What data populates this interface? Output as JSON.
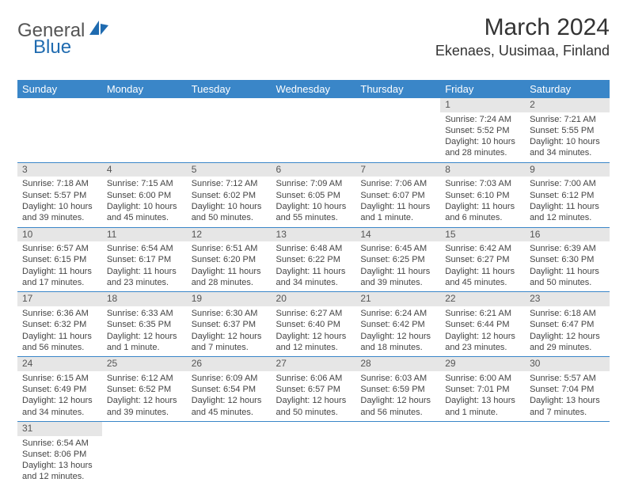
{
  "brand": {
    "part1": "General",
    "part2": "Blue"
  },
  "title": "March 2024",
  "location": "Ekenaes, Uusimaa, Finland",
  "colors": {
    "header_bg": "#3a86c8",
    "header_text": "#ffffff",
    "daynum_bg": "#e6e6e6",
    "row_border": "#3a86c8",
    "logo_text": "#555555",
    "logo_blue": "#1f6bb0"
  },
  "weekdays": [
    "Sunday",
    "Monday",
    "Tuesday",
    "Wednesday",
    "Thursday",
    "Friday",
    "Saturday"
  ],
  "weeks": [
    [
      null,
      null,
      null,
      null,
      null,
      {
        "n": "1",
        "sr": "7:24 AM",
        "ss": "5:52 PM",
        "dl": "10 hours and 28 minutes."
      },
      {
        "n": "2",
        "sr": "7:21 AM",
        "ss": "5:55 PM",
        "dl": "10 hours and 34 minutes."
      }
    ],
    [
      {
        "n": "3",
        "sr": "7:18 AM",
        "ss": "5:57 PM",
        "dl": "10 hours and 39 minutes."
      },
      {
        "n": "4",
        "sr": "7:15 AM",
        "ss": "6:00 PM",
        "dl": "10 hours and 45 minutes."
      },
      {
        "n": "5",
        "sr": "7:12 AM",
        "ss": "6:02 PM",
        "dl": "10 hours and 50 minutes."
      },
      {
        "n": "6",
        "sr": "7:09 AM",
        "ss": "6:05 PM",
        "dl": "10 hours and 55 minutes."
      },
      {
        "n": "7",
        "sr": "7:06 AM",
        "ss": "6:07 PM",
        "dl": "11 hours and 1 minute."
      },
      {
        "n": "8",
        "sr": "7:03 AM",
        "ss": "6:10 PM",
        "dl": "11 hours and 6 minutes."
      },
      {
        "n": "9",
        "sr": "7:00 AM",
        "ss": "6:12 PM",
        "dl": "11 hours and 12 minutes."
      }
    ],
    [
      {
        "n": "10",
        "sr": "6:57 AM",
        "ss": "6:15 PM",
        "dl": "11 hours and 17 minutes."
      },
      {
        "n": "11",
        "sr": "6:54 AM",
        "ss": "6:17 PM",
        "dl": "11 hours and 23 minutes."
      },
      {
        "n": "12",
        "sr": "6:51 AM",
        "ss": "6:20 PM",
        "dl": "11 hours and 28 minutes."
      },
      {
        "n": "13",
        "sr": "6:48 AM",
        "ss": "6:22 PM",
        "dl": "11 hours and 34 minutes."
      },
      {
        "n": "14",
        "sr": "6:45 AM",
        "ss": "6:25 PM",
        "dl": "11 hours and 39 minutes."
      },
      {
        "n": "15",
        "sr": "6:42 AM",
        "ss": "6:27 PM",
        "dl": "11 hours and 45 minutes."
      },
      {
        "n": "16",
        "sr": "6:39 AM",
        "ss": "6:30 PM",
        "dl": "11 hours and 50 minutes."
      }
    ],
    [
      {
        "n": "17",
        "sr": "6:36 AM",
        "ss": "6:32 PM",
        "dl": "11 hours and 56 minutes."
      },
      {
        "n": "18",
        "sr": "6:33 AM",
        "ss": "6:35 PM",
        "dl": "12 hours and 1 minute."
      },
      {
        "n": "19",
        "sr": "6:30 AM",
        "ss": "6:37 PM",
        "dl": "12 hours and 7 minutes."
      },
      {
        "n": "20",
        "sr": "6:27 AM",
        "ss": "6:40 PM",
        "dl": "12 hours and 12 minutes."
      },
      {
        "n": "21",
        "sr": "6:24 AM",
        "ss": "6:42 PM",
        "dl": "12 hours and 18 minutes."
      },
      {
        "n": "22",
        "sr": "6:21 AM",
        "ss": "6:44 PM",
        "dl": "12 hours and 23 minutes."
      },
      {
        "n": "23",
        "sr": "6:18 AM",
        "ss": "6:47 PM",
        "dl": "12 hours and 29 minutes."
      }
    ],
    [
      {
        "n": "24",
        "sr": "6:15 AM",
        "ss": "6:49 PM",
        "dl": "12 hours and 34 minutes."
      },
      {
        "n": "25",
        "sr": "6:12 AM",
        "ss": "6:52 PM",
        "dl": "12 hours and 39 minutes."
      },
      {
        "n": "26",
        "sr": "6:09 AM",
        "ss": "6:54 PM",
        "dl": "12 hours and 45 minutes."
      },
      {
        "n": "27",
        "sr": "6:06 AM",
        "ss": "6:57 PM",
        "dl": "12 hours and 50 minutes."
      },
      {
        "n": "28",
        "sr": "6:03 AM",
        "ss": "6:59 PM",
        "dl": "12 hours and 56 minutes."
      },
      {
        "n": "29",
        "sr": "6:00 AM",
        "ss": "7:01 PM",
        "dl": "13 hours and 1 minute."
      },
      {
        "n": "30",
        "sr": "5:57 AM",
        "ss": "7:04 PM",
        "dl": "13 hours and 7 minutes."
      }
    ],
    [
      {
        "n": "31",
        "sr": "6:54 AM",
        "ss": "8:06 PM",
        "dl": "13 hours and 12 minutes."
      },
      null,
      null,
      null,
      null,
      null,
      null
    ]
  ],
  "labels": {
    "sunrise": "Sunrise:",
    "sunset": "Sunset:",
    "daylight": "Daylight:"
  }
}
